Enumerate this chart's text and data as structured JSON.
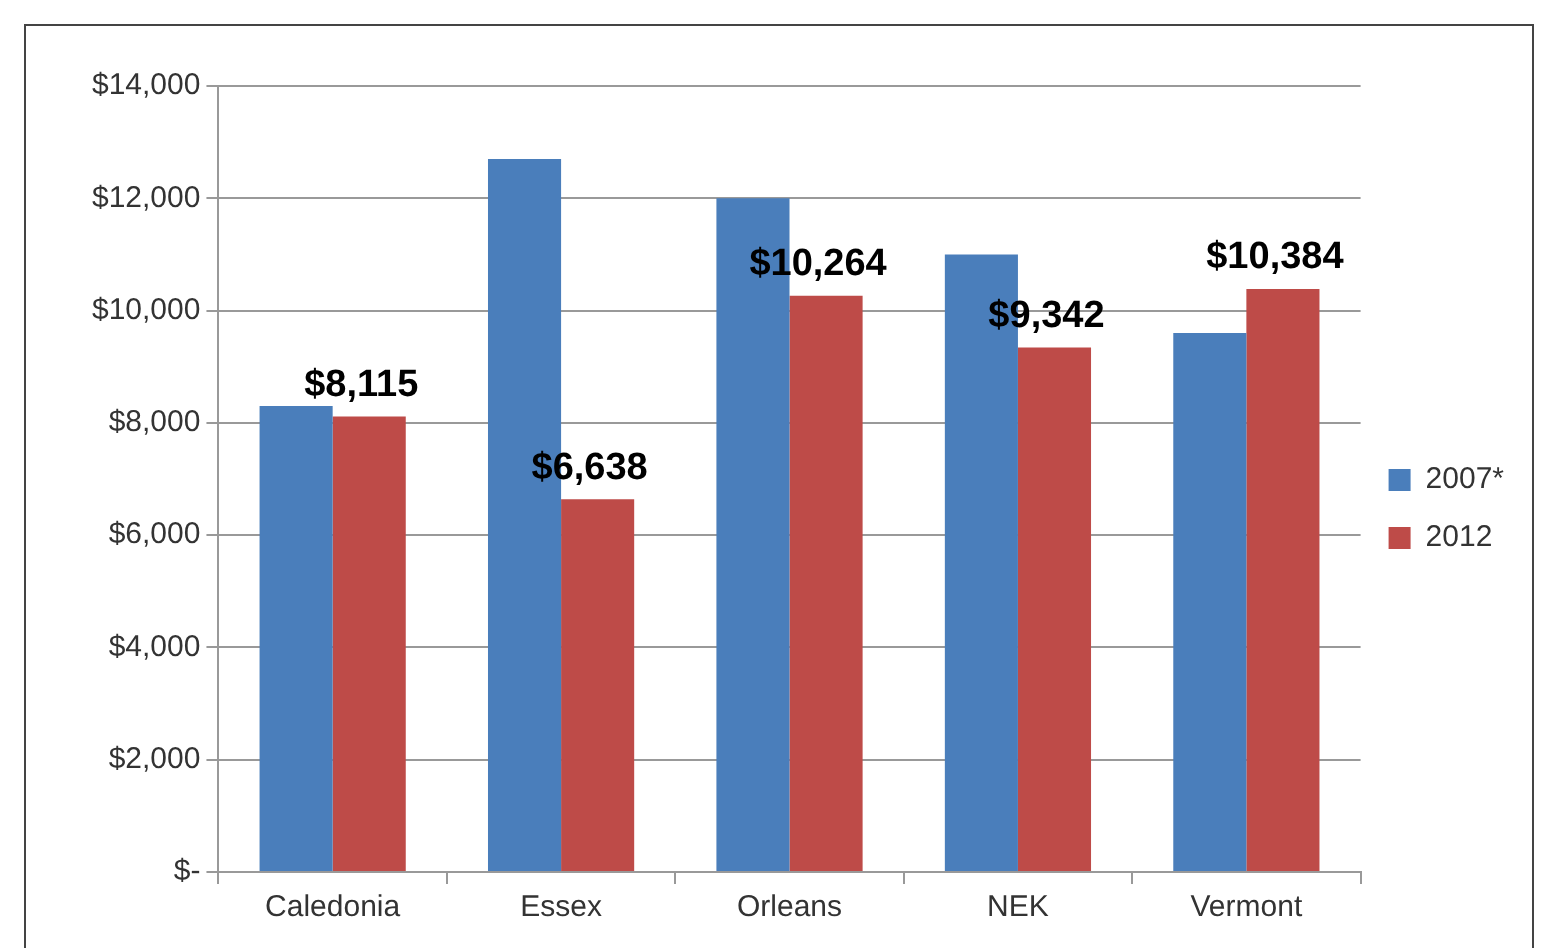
{
  "chart_data": {
    "type": "bar",
    "categories": [
      "Caledonia",
      "Essex",
      "Orleans",
      "NEK",
      "Vermont"
    ],
    "series": [
      {
        "name": "2007*",
        "color": "#4a7ebb",
        "values": [
          8300,
          12700,
          12000,
          11000,
          9600
        ]
      },
      {
        "name": "2012",
        "color": "#be4b48",
        "values": [
          8115,
          6638,
          10264,
          9342,
          10384
        ],
        "value_labels": [
          "$8,115",
          "$6,638",
          "$10,264",
          "$9,342",
          "$10,384"
        ]
      }
    ],
    "ylim": [
      0,
      14000
    ],
    "yticks": [
      {
        "value": 0,
        "label": "$-"
      },
      {
        "value": 2000,
        "label": "$2,000"
      },
      {
        "value": 4000,
        "label": "$4,000"
      },
      {
        "value": 6000,
        "label": "$6,000"
      },
      {
        "value": 8000,
        "label": "$8,000"
      },
      {
        "value": 10000,
        "label": "$10,000"
      },
      {
        "value": 12000,
        "label": "$12,000"
      },
      {
        "value": 14000,
        "label": "$14,000"
      }
    ],
    "grid": "y",
    "legend": "right"
  }
}
